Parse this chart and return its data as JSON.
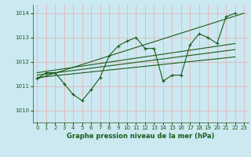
{
  "bg_color": "#cce8f0",
  "grid_color": "#e8c8c8",
  "line_color": "#1a5c1a",
  "title": "Graphe pression niveau de la mer (hPa)",
  "title_color": "#1a5c1a",
  "xlim": [
    -0.5,
    23.5
  ],
  "ylim": [
    1009.5,
    1014.35
  ],
  "yticks": [
    1010,
    1011,
    1012,
    1013,
    1014
  ],
  "xticks": [
    0,
    1,
    2,
    3,
    4,
    5,
    6,
    7,
    8,
    9,
    10,
    11,
    12,
    13,
    14,
    15,
    16,
    17,
    18,
    19,
    20,
    21,
    22,
    23
  ],
  "series1_x": [
    0,
    1,
    2,
    3,
    4,
    5,
    6,
    7,
    8,
    9,
    10,
    11,
    12,
    13,
    14,
    15,
    16,
    17,
    18,
    19,
    20,
    21,
    22
  ],
  "series1_y": [
    1011.3,
    1011.55,
    1011.55,
    1011.1,
    1010.65,
    1010.4,
    1010.85,
    1011.35,
    1012.25,
    1012.65,
    1012.85,
    1013.0,
    1012.55,
    1012.55,
    1011.2,
    1011.45,
    1011.45,
    1012.7,
    1013.15,
    1013.0,
    1012.75,
    1013.85,
    1014.0
  ],
  "trend1_x": [
    0,
    23
  ],
  "trend1_y": [
    1011.3,
    1014.0
  ],
  "trend2_x": [
    0,
    22
  ],
  "trend2_y": [
    1011.55,
    1012.75
  ],
  "trend3_x": [
    0,
    22
  ],
  "trend3_y": [
    1011.45,
    1012.5
  ],
  "trend4_x": [
    0,
    22
  ],
  "trend4_y": [
    1011.35,
    1012.2
  ]
}
